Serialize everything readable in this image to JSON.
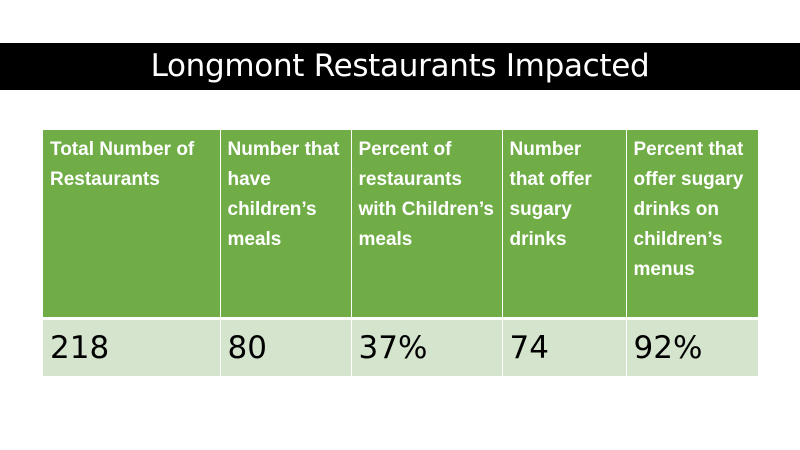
{
  "slide": {
    "title": "Longmont Restaurants Impacted"
  },
  "table": {
    "headers": [
      "Total Number of Restaurants",
      "Number that have children’s meals",
      "Percent of restaurants with Children’s meals",
      "Number that offer sugary drinks",
      "Percent that offer sugary drinks on children’s menus"
    ],
    "rows": [
      [
        "218",
        "80",
        "37%",
        "74",
        "92%"
      ]
    ]
  },
  "colors": {
    "title_bar": "#000000",
    "header_fill": "#70ad47",
    "row_fill": "#d5e4cd"
  }
}
